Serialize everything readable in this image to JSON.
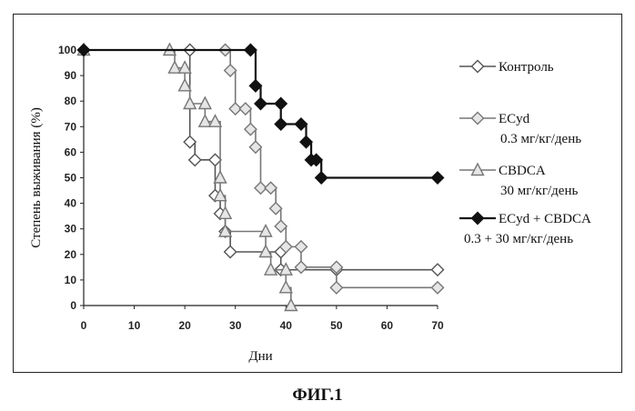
{
  "figure_caption": "ФИГ.1",
  "chart_data": {
    "type": "line",
    "step": true,
    "xlabel": "Дни",
    "ylabel": "Степень выживания (%)",
    "xlim": [
      0,
      70
    ],
    "ylim": [
      0,
      100
    ],
    "xticks": [
      0,
      10,
      20,
      30,
      40,
      50,
      60,
      70
    ],
    "yticks": [
      0,
      10,
      20,
      30,
      40,
      50,
      60,
      70,
      80,
      90,
      100
    ],
    "grid": false,
    "legend_position": "right",
    "series": [
      {
        "name": "Контроль",
        "name_line2": "",
        "marker": "diamond-open",
        "color": "#555555",
        "points": [
          [
            0,
            100
          ],
          [
            21,
            100
          ],
          [
            21,
            64
          ],
          [
            22,
            57
          ],
          [
            26,
            57
          ],
          [
            26,
            43
          ],
          [
            27,
            36
          ],
          [
            28,
            29
          ],
          [
            29,
            21
          ],
          [
            39,
            21
          ],
          [
            39,
            14
          ],
          [
            50,
            14
          ],
          [
            70,
            14
          ]
        ]
      },
      {
        "name": "ECyd",
        "name_line2": "0.3 мг/кг/день",
        "marker": "diamond-open",
        "color": "#777777",
        "points": [
          [
            0,
            100
          ],
          [
            28,
            100
          ],
          [
            29,
            92
          ],
          [
            30,
            77
          ],
          [
            32,
            77
          ],
          [
            33,
            69
          ],
          [
            34,
            62
          ],
          [
            35,
            46
          ],
          [
            37,
            46
          ],
          [
            38,
            38
          ],
          [
            39,
            31
          ],
          [
            40,
            23
          ],
          [
            43,
            23
          ],
          [
            43,
            15
          ],
          [
            50,
            15
          ],
          [
            50,
            7
          ],
          [
            70,
            7
          ]
        ]
      },
      {
        "name": "CBDCA",
        "name_line2": "30 мг/кг/день",
        "marker": "triangle-open",
        "color": "#777777",
        "points": [
          [
            0,
            100
          ],
          [
            17,
            100
          ],
          [
            18,
            93
          ],
          [
            20,
            93
          ],
          [
            20,
            86
          ],
          [
            21,
            79
          ],
          [
            24,
            79
          ],
          [
            24,
            72
          ],
          [
            26,
            72
          ],
          [
            27,
            50
          ],
          [
            27,
            43
          ],
          [
            28,
            36
          ],
          [
            28,
            29
          ],
          [
            36,
            29
          ],
          [
            36,
            21
          ],
          [
            37,
            14
          ],
          [
            40,
            14
          ],
          [
            40,
            7
          ],
          [
            41,
            0
          ]
        ]
      },
      {
        "name": "ECyd + CBDCA",
        "name_line2": "0.3 + 30 мг/кг/день",
        "marker": "diamond-filled",
        "color": "#111111",
        "points": [
          [
            0,
            100
          ],
          [
            33,
            100
          ],
          [
            34,
            86
          ],
          [
            35,
            79
          ],
          [
            39,
            79
          ],
          [
            39,
            71
          ],
          [
            43,
            71
          ],
          [
            44,
            64
          ],
          [
            45,
            57
          ],
          [
            46,
            57
          ],
          [
            47,
            50
          ],
          [
            70,
            50
          ]
        ]
      }
    ]
  }
}
